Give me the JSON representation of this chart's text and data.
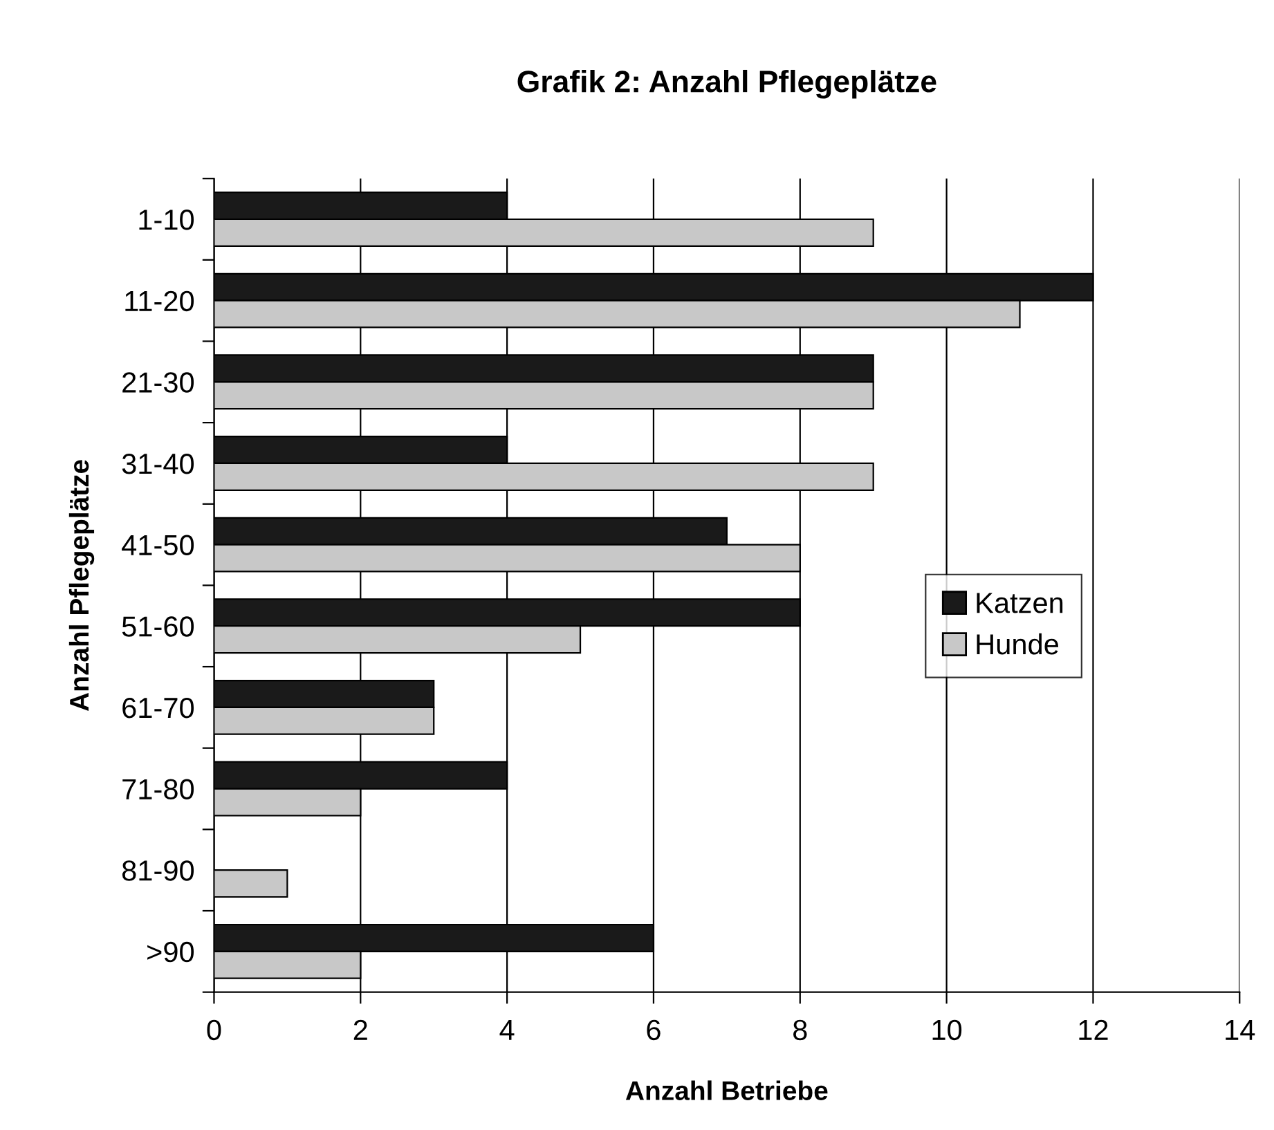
{
  "chart_data": {
    "type": "bar",
    "orientation": "horizontal",
    "title": "Grafik 2: Anzahl Pflegeplätze",
    "xlabel": "Anzahl Betriebe",
    "ylabel": "Anzahl Pflegeplätze",
    "categories": [
      "1-10",
      "11-20",
      "21-30",
      "31-40",
      "41-50",
      "51-60",
      "61-70",
      "71-80",
      "81-90",
      ">90"
    ],
    "series": [
      {
        "name": "Katzen",
        "color": "#1a1a1a",
        "values": [
          4,
          12,
          9,
          4,
          7,
          8,
          3,
          4,
          null,
          6
        ]
      },
      {
        "name": "Hunde",
        "color": "#c8c8c8",
        "values": [
          9,
          11,
          9,
          9,
          8,
          5,
          3,
          2,
          1,
          2
        ]
      }
    ],
    "xlim": [
      0,
      14
    ],
    "xticks": [
      0,
      2,
      4,
      6,
      8,
      10,
      12,
      14
    ],
    "grid": "x",
    "legend": "right"
  }
}
